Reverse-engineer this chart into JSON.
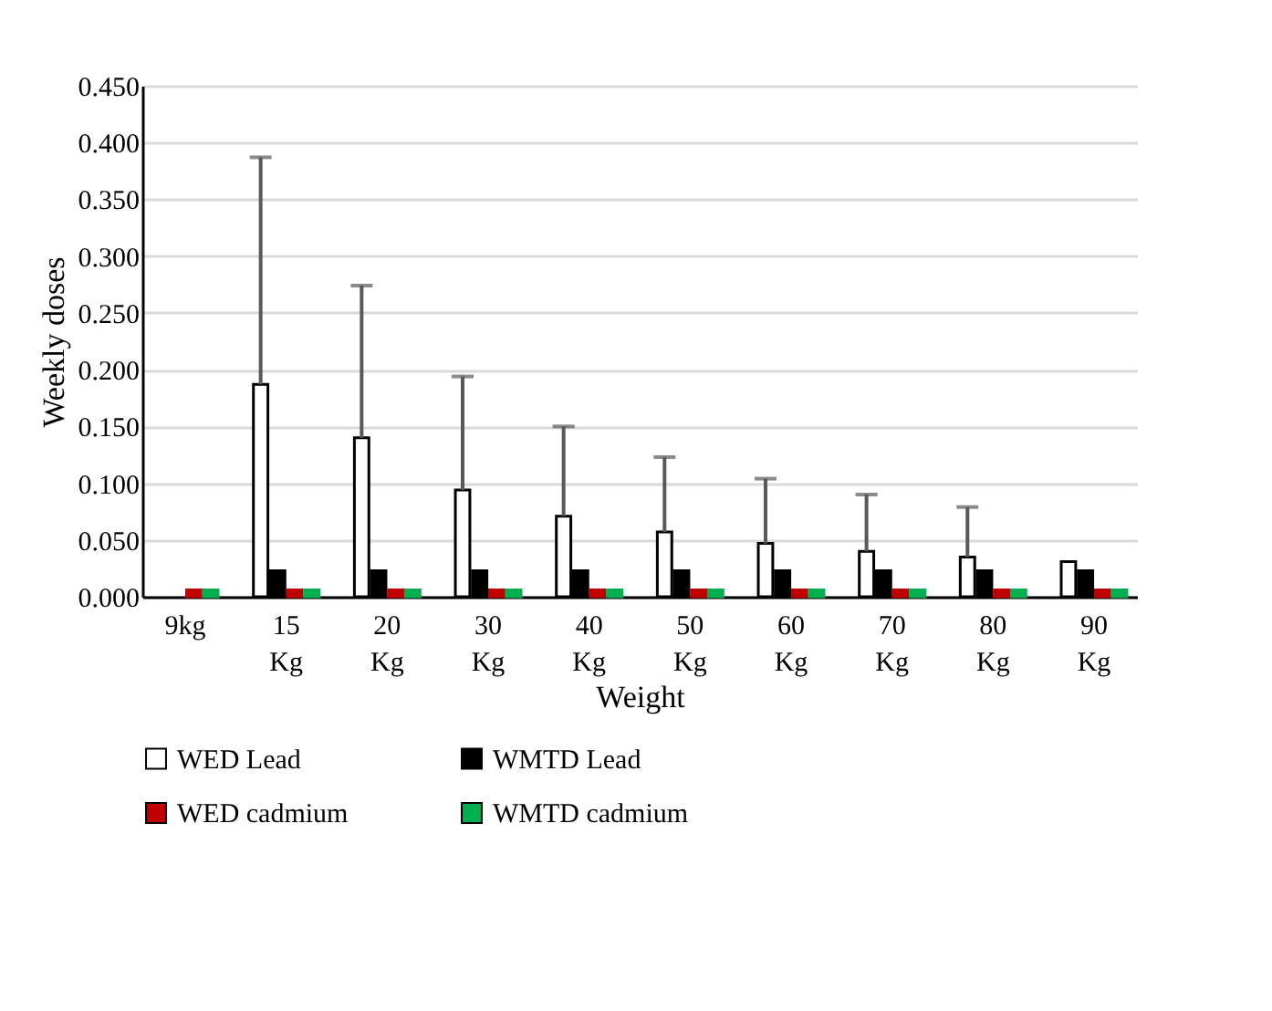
{
  "chart_data": {
    "type": "bar",
    "xlabel": "Weight",
    "ylabel": "Weekly doses",
    "categories": [
      "9kg",
      "15 Kg",
      "20 Kg",
      "30 Kg",
      "40 Kg",
      "50 Kg",
      "60 Kg",
      "70 Kg",
      "80 Kg",
      "90 Kg"
    ],
    "series": [
      {
        "name": "WED Lead",
        "color": "#ffffff",
        "values": [
          null,
          0.187,
          0.14,
          0.094,
          0.071,
          0.057,
          0.047,
          0.04,
          0.035,
          0.031
        ],
        "errors": [
          null,
          [
            0.187,
            0.387
          ],
          [
            0.14,
            0.274
          ],
          [
            0.094,
            0.194
          ],
          [
            0.071,
            0.15
          ],
          [
            0.057,
            0.123
          ],
          [
            0.047,
            0.104
          ],
          [
            0.04,
            0.09
          ],
          [
            0.035,
            0.079
          ],
          null
        ]
      },
      {
        "name": "WMTD Lead",
        "color": "#000000",
        "values": [
          null,
          0.023,
          0.023,
          0.023,
          0.023,
          0.023,
          0.023,
          0.023,
          0.023,
          0.023
        ]
      },
      {
        "name": "WED cadmium",
        "color": "#c00000",
        "values": [
          0.006,
          0.006,
          0.006,
          0.006,
          0.006,
          0.006,
          0.006,
          0.006,
          0.006,
          0.006
        ]
      },
      {
        "name": "WMTD cadmium",
        "color": "#00b050",
        "values": [
          0.006,
          0.006,
          0.006,
          0.006,
          0.006,
          0.006,
          0.006,
          0.006,
          0.006,
          0.006
        ]
      }
    ],
    "ylim": [
      0,
      0.45
    ],
    "yticks": [
      {
        "value": 0,
        "label": "0.000"
      },
      {
        "value": 0.05,
        "label": "0.050"
      },
      {
        "value": 0.1,
        "label": "0.100"
      },
      {
        "value": 0.15,
        "label": "0.150"
      },
      {
        "value": 0.2,
        "label": "0.200"
      },
      {
        "value": 0.25,
        "label": "0.250"
      },
      {
        "value": 0.3,
        "label": "0.300"
      },
      {
        "value": 0.35,
        "label": "0.350"
      },
      {
        "value": 0.4,
        "label": "0.400"
      },
      {
        "value": 0.45,
        "label": "0.450"
      }
    ],
    "grid": "y",
    "legend": "bottom"
  }
}
